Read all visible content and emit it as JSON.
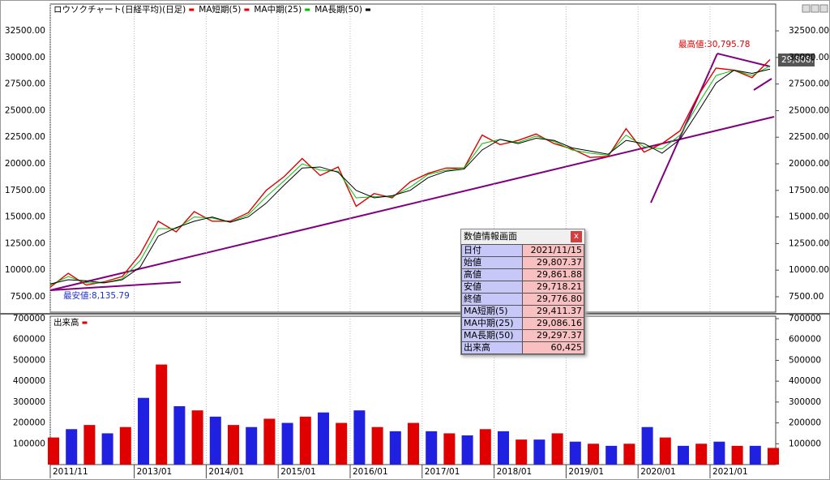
{
  "chart_data": [
    {
      "type": "line",
      "title": "ロウソクチャート(日経平均)(日足)",
      "color": "#e00000",
      "x": [
        "2011/11",
        "2012/02",
        "2012/05",
        "2012/08",
        "2012/11",
        "2013/02",
        "2013/05",
        "2013/08",
        "2013/11",
        "2014/02",
        "2014/05",
        "2014/08",
        "2014/11",
        "2015/02",
        "2015/05",
        "2015/08",
        "2015/11",
        "2016/02",
        "2016/05",
        "2016/08",
        "2016/11",
        "2017/02",
        "2017/05",
        "2017/08",
        "2017/11",
        "2018/02",
        "2018/05",
        "2018/08",
        "2018/11",
        "2019/02",
        "2019/05",
        "2019/08",
        "2019/11",
        "2020/02",
        "2020/05",
        "2020/08",
        "2020/11",
        "2021/02",
        "2021/05",
        "2021/08",
        "2021/11"
      ],
      "series": [
        {
          "name": "MA短期(5)",
          "color": "#e00000",
          "values": [
            8400,
            9700,
            8600,
            8900,
            9400,
            11500,
            14600,
            13600,
            15500,
            14600,
            14600,
            15400,
            17500,
            18800,
            20500,
            18900,
            19700,
            16000,
            17200,
            16800,
            18300,
            19100,
            19600,
            19600,
            22700,
            21800,
            22200,
            22800,
            21900,
            21400,
            20600,
            20700,
            23300,
            21100,
            21900,
            23100,
            26400,
            29000,
            28800,
            28100,
            29800
          ]
        },
        {
          "name": "MA中期(25)",
          "color": "#00c000",
          "values": [
            8600,
            9400,
            8800,
            8800,
            9200,
            10900,
            13900,
            13900,
            15000,
            14900,
            14500,
            15200,
            16900,
            18400,
            20000,
            19400,
            19300,
            16800,
            16900,
            16900,
            17800,
            19000,
            19400,
            19600,
            21900,
            22300,
            22000,
            22600,
            22100,
            21300,
            21000,
            20800,
            22700,
            21600,
            21400,
            22700,
            25600,
            28300,
            28800,
            28300,
            29200
          ]
        },
        {
          "name": "MA長期(50)",
          "color": "#000000",
          "values": [
            8700,
            9100,
            9000,
            8800,
            9100,
            10300,
            13200,
            14000,
            14600,
            15000,
            14500,
            15000,
            16300,
            18000,
            19600,
            19700,
            19200,
            17500,
            16800,
            17000,
            17500,
            18700,
            19300,
            19500,
            21300,
            22300,
            21900,
            22400,
            22200,
            21500,
            21200,
            20900,
            22200,
            21900,
            21000,
            22300,
            24900,
            27600,
            28800,
            28500,
            28900
          ]
        }
      ],
      "ylim": [
        6050,
        35020
      ],
      "yticks": [
        {
          "value": 7500,
          "label": "7500.00"
        },
        {
          "value": 10000,
          "label": "10000.00"
        },
        {
          "value": 12500,
          "label": "12500.00"
        },
        {
          "value": 15000,
          "label": "15000.00"
        },
        {
          "value": 17500,
          "label": "17500.00"
        },
        {
          "value": 20000,
          "label": "20000.00"
        },
        {
          "value": 22500,
          "label": "22500.00"
        },
        {
          "value": 25000,
          "label": "25000.00"
        },
        {
          "value": 27500,
          "label": "27500.00"
        },
        {
          "value": 30000,
          "label": "30000.00"
        },
        {
          "value": 32500,
          "label": "32500.00"
        }
      ],
      "xticks": [
        "2011/11",
        "2013/01",
        "2014/01",
        "2015/01",
        "2016/01",
        "2017/01",
        "2018/01",
        "2019/01",
        "2020/01",
        "2021/01"
      ],
      "grid": true,
      "annotations": [
        "最高値:30,795.78",
        "最安値:8,135.79"
      ],
      "last_value": {
        "value": 29808.12,
        "label": "29,808.12"
      }
    },
    {
      "type": "bar",
      "series": [
        {
          "name": "出来高",
          "color": "#e00000",
          "values": [
            130000,
            170000,
            190000,
            150000,
            180000,
            320000,
            480000,
            280000,
            260000,
            230000,
            190000,
            180000,
            220000,
            200000,
            230000,
            250000,
            200000,
            260000,
            180000,
            160000,
            200000,
            160000,
            150000,
            140000,
            170000,
            160000,
            120000,
            120000,
            150000,
            110000,
            100000,
            90000,
            100000,
            180000,
            130000,
            90000,
            100000,
            110000,
            90000,
            90000,
            80000
          ]
        }
      ],
      "ylim": [
        0,
        700000
      ],
      "yticks": [
        100000,
        200000,
        300000,
        400000,
        500000,
        600000,
        700000
      ],
      "grid": true
    }
  ],
  "data_window": {
    "title": "数値情報画面",
    "close": "x",
    "rows": [
      [
        "日付",
        "2021/11/15"
      ],
      [
        "始値",
        "29,807.37"
      ],
      [
        "高値",
        "29,861.88"
      ],
      [
        "安値",
        "29,718.21"
      ],
      [
        "終値",
        "29,776.80"
      ],
      [
        "MA短期(5)",
        "29,411.37"
      ],
      [
        "MA中期(25)",
        "29,086.16"
      ],
      [
        "MA長期(50)",
        "29,297.37"
      ],
      [
        "出来高",
        "60,425"
      ]
    ]
  }
}
